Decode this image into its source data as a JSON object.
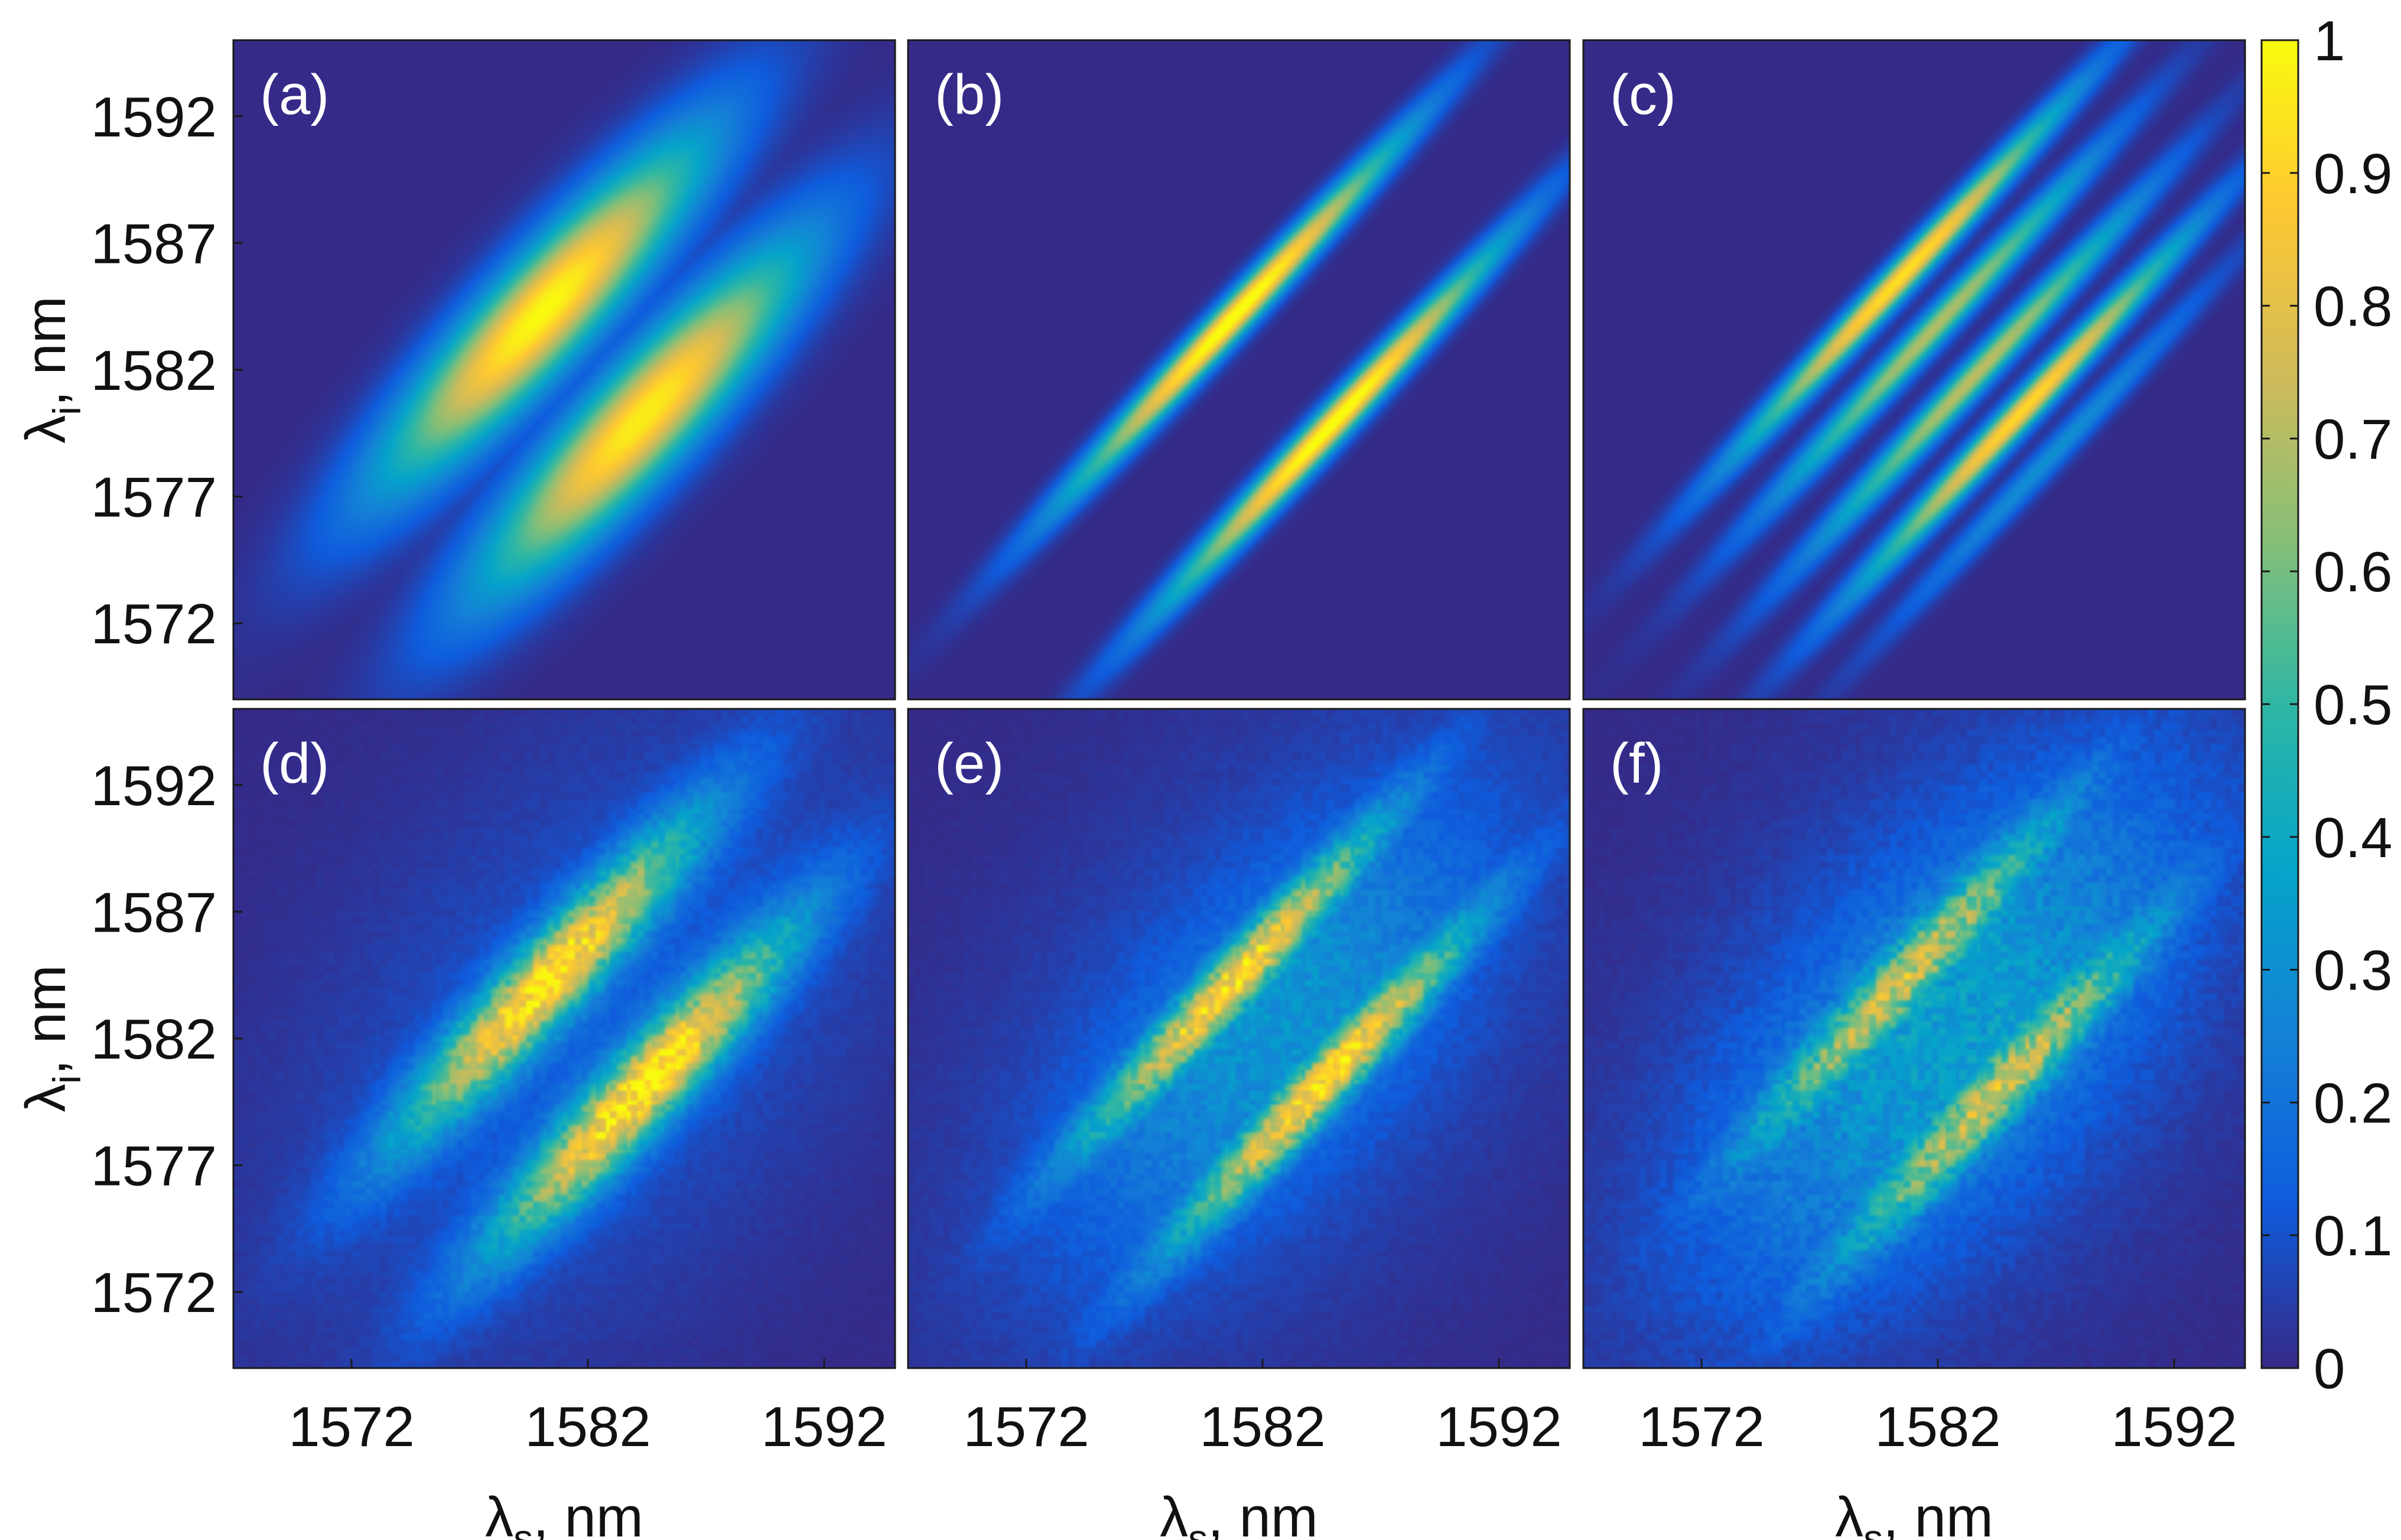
{
  "figure": {
    "colormap": "parula",
    "colormap_stops": [
      "#352a87",
      "#0f5cdd",
      "#1481d6",
      "#06a4ca",
      "#2eb7a4",
      "#87bf77",
      "#d1bb59",
      "#fec832",
      "#f9fb0e"
    ],
    "panels_layout": "2x3"
  },
  "chart_data": [
    {
      "type": "heatmap",
      "panel_label": "(a)",
      "xlabel": "",
      "ylabel_main": "λ",
      "ylabel_sub": "i",
      "ylabel_suffix": ", nm",
      "xlim": [
        1567,
        1595
      ],
      "ylim": [
        1569,
        1595
      ],
      "yticks": [
        1592,
        1587,
        1582,
        1577,
        1572
      ],
      "xticks": [],
      "lobes": [
        {
          "x_center": 1580.1,
          "y_center": 1584.3,
          "slope": 1.0,
          "peak": 1.0,
          "along_width": 6.5,
          "across_width": 1.45
        },
        {
          "x_center": 1584.3,
          "y_center": 1580.1,
          "slope": 1.0,
          "peak": 0.97,
          "along_width": 6.5,
          "across_width": 1.45
        }
      ],
      "noise": 0
    },
    {
      "type": "heatmap",
      "panel_label": "(b)",
      "xlabel": "",
      "ylabel_main": "",
      "ylabel_sub": "",
      "ylabel_suffix": "",
      "xlim": [
        1567,
        1595
      ],
      "ylim": [
        1569,
        1595
      ],
      "yticks": [],
      "xticks": [],
      "lobes": [
        {
          "x_center": 1582.6,
          "y_center": 1585.9,
          "slope": 1.0,
          "peak": 0.32,
          "along_width": 7.0,
          "across_width": 0.45
        },
        {
          "x_center": 1580.8,
          "y_center": 1584.1,
          "slope": 1.0,
          "peak": 0.95,
          "along_width": 6.8,
          "across_width": 0.5
        },
        {
          "x_center": 1579.0,
          "y_center": 1582.3,
          "slope": 1.0,
          "peak": 0.3,
          "along_width": 7.0,
          "across_width": 0.45
        },
        {
          "x_center": 1586.8,
          "y_center": 1581.7,
          "slope": 1.0,
          "peak": 0.32,
          "along_width": 7.0,
          "across_width": 0.45
        },
        {
          "x_center": 1585.0,
          "y_center": 1579.9,
          "slope": 1.0,
          "peak": 0.95,
          "along_width": 6.8,
          "across_width": 0.5
        },
        {
          "x_center": 1583.2,
          "y_center": 1578.1,
          "slope": 1.0,
          "peak": 0.3,
          "along_width": 7.0,
          "across_width": 0.45
        }
      ],
      "noise": 0
    },
    {
      "type": "heatmap",
      "panel_label": "(c)",
      "xlabel": "",
      "ylabel_main": "",
      "ylabel_sub": "",
      "ylabel_suffix": "",
      "xlim": [
        1567,
        1595
      ],
      "ylim": [
        1569,
        1595
      ],
      "yticks": [],
      "xticks": [],
      "lobes": [
        {
          "x_center": 1581.6,
          "y_center": 1586.8,
          "slope": 1.0,
          "peak": 0.3,
          "along_width": 6.8,
          "across_width": 0.4
        },
        {
          "x_center": 1580.4,
          "y_center": 1585.6,
          "slope": 1.0,
          "peak": 0.9,
          "along_width": 6.8,
          "across_width": 0.45
        },
        {
          "x_center": 1581.8,
          "y_center": 1583.6,
          "slope": 1.0,
          "peak": 0.7,
          "along_width": 6.8,
          "across_width": 0.45
        },
        {
          "x_center": 1583.6,
          "y_center": 1581.8,
          "slope": 1.0,
          "peak": 0.72,
          "along_width": 6.8,
          "across_width": 0.45
        },
        {
          "x_center": 1585.6,
          "y_center": 1580.4,
          "slope": 1.0,
          "peak": 0.92,
          "along_width": 6.8,
          "across_width": 0.45
        },
        {
          "x_center": 1586.8,
          "y_center": 1578.6,
          "slope": 1.0,
          "peak": 0.3,
          "along_width": 6.8,
          "across_width": 0.4
        }
      ],
      "noise": 0
    },
    {
      "type": "heatmap",
      "panel_label": "(d)",
      "xlabel_main": "λ",
      "xlabel_sub": "s",
      "xlabel_suffix": ", nm",
      "ylabel_main": "λ",
      "ylabel_sub": "i",
      "ylabel_suffix": ", nm",
      "xlim": [
        1567,
        1595
      ],
      "ylim": [
        1569,
        1595
      ],
      "yticks": [
        1592,
        1587,
        1582,
        1577,
        1572
      ],
      "xticks": [
        1572,
        1582,
        1592
      ],
      "lobes": [
        {
          "x_center": 1580.3,
          "y_center": 1584.3,
          "slope": 1.0,
          "peak": 0.85,
          "along_width": 6.0,
          "across_width": 1.05
        },
        {
          "x_center": 1584.4,
          "y_center": 1580.1,
          "slope": 1.0,
          "peak": 0.87,
          "along_width": 6.0,
          "across_width": 1.05
        }
      ],
      "background": 0.12,
      "noise": 0.18
    },
    {
      "type": "heatmap",
      "panel_label": "(e)",
      "xlabel_main": "λ",
      "xlabel_sub": "s",
      "xlabel_suffix": ", nm",
      "ylabel_main": "",
      "ylabel_sub": "",
      "ylabel_suffix": "",
      "xlim": [
        1567,
        1595
      ],
      "ylim": [
        1569,
        1595
      ],
      "yticks": [],
      "xticks": [
        1572,
        1582,
        1592
      ],
      "lobes": [
        {
          "x_center": 1580.7,
          "y_center": 1584.2,
          "slope": 1.0,
          "peak": 0.78,
          "along_width": 6.2,
          "across_width": 0.75
        },
        {
          "x_center": 1584.6,
          "y_center": 1580.3,
          "slope": 1.0,
          "peak": 0.8,
          "along_width": 6.2,
          "across_width": 0.75
        },
        {
          "x_center": 1582.6,
          "y_center": 1582.4,
          "slope": 1.0,
          "peak": 0.2,
          "along_width": 7.5,
          "across_width": 3.0
        }
      ],
      "background": 0.12,
      "noise": 0.2
    },
    {
      "type": "heatmap",
      "panel_label": "(f)",
      "xlabel_main": "λ",
      "xlabel_sub": "s",
      "xlabel_suffix": ", nm",
      "ylabel_main": "",
      "ylabel_sub": "",
      "ylabel_suffix": "",
      "xlim": [
        1567,
        1595
      ],
      "ylim": [
        1569,
        1595
      ],
      "yticks": [],
      "xticks": [
        1572,
        1582,
        1592
      ],
      "lobes": [
        {
          "x_center": 1580.5,
          "y_center": 1584.3,
          "slope": 1.0,
          "peak": 0.6,
          "along_width": 6.5,
          "across_width": 0.85
        },
        {
          "x_center": 1584.6,
          "y_center": 1580.0,
          "slope": 1.0,
          "peak": 0.62,
          "along_width": 6.5,
          "across_width": 0.85
        },
        {
          "x_center": 1582.5,
          "y_center": 1582.3,
          "slope": 1.0,
          "peak": 0.22,
          "along_width": 8.5,
          "across_width": 3.6
        }
      ],
      "background": 0.14,
      "noise": 0.25
    }
  ],
  "colorbar": {
    "min": 0,
    "max": 1,
    "ticks": [
      "1",
      "0.9",
      "0.8",
      "0.7",
      "0.6",
      "0.5",
      "0.4",
      "0.3",
      "0.2",
      "0.1",
      "0"
    ]
  }
}
